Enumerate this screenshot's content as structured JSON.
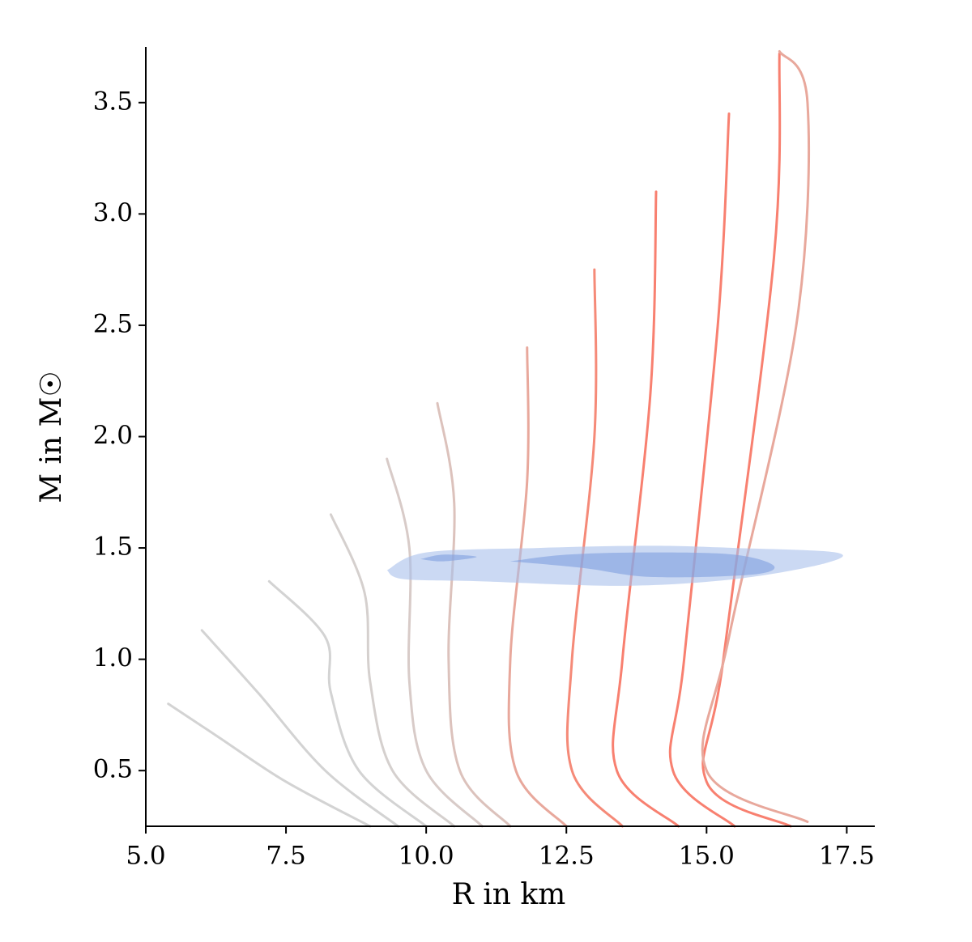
{
  "chart_data": {
    "type": "line",
    "x_label": "R in km",
    "y_label": "M in M☉",
    "xlim": [
      5,
      18
    ],
    "ylim": [
      0.25,
      3.75
    ],
    "xticks": [
      {
        "value": 5,
        "label": "5.0"
      },
      7.5,
      {
        "value": 10,
        "label": "10.0"
      },
      12.5,
      {
        "value": 15,
        "label": "15.0"
      },
      17.5
    ],
    "yticks": [
      0.5,
      {
        "value": 1,
        "label": "1.0"
      },
      1.5,
      {
        "value": 2,
        "label": "2.0"
      },
      2.5,
      {
        "value": 3,
        "label": "3.0"
      },
      3.5
    ],
    "series": [
      {
        "color": "#d3d3d3",
        "x": [
          9.0,
          7.5,
          6.3,
          5.4
        ],
        "values": [
          0.25,
          0.45,
          0.65,
          0.8
        ]
      },
      {
        "color": "#d3d3d3",
        "x": [
          9.5,
          8.2,
          7.0,
          6.0
        ],
        "values": [
          0.25,
          0.5,
          0.85,
          1.13
        ]
      },
      {
        "color": "#d3d3d3",
        "x": [
          10.0,
          8.8,
          8.3,
          8.2,
          7.2
        ],
        "values": [
          0.25,
          0.5,
          0.85,
          1.1,
          1.35
        ]
      },
      {
        "color": "#d5d0ce",
        "x": [
          10.5,
          9.4,
          9.0,
          8.9,
          8.3
        ],
        "values": [
          0.25,
          0.5,
          0.9,
          1.3,
          1.65
        ]
      },
      {
        "color": "#d8cbc8",
        "x": [
          11.0,
          10.0,
          9.7,
          9.7,
          9.3
        ],
        "values": [
          0.25,
          0.5,
          0.9,
          1.5,
          1.9
        ]
      },
      {
        "color": "#dcc2bc",
        "x": [
          11.5,
          10.6,
          10.4,
          10.5,
          10.2
        ],
        "values": [
          0.25,
          0.5,
          1.0,
          1.7,
          2.15
        ]
      },
      {
        "color": "#e8a89c",
        "x": [
          12.5,
          11.6,
          11.5,
          11.8,
          11.8
        ],
        "values": [
          0.25,
          0.5,
          1.0,
          1.8,
          2.4
        ]
      },
      {
        "color": "#f58a78",
        "x": [
          13.5,
          12.6,
          12.6,
          13.0,
          13.0
        ],
        "values": [
          0.25,
          0.5,
          1.0,
          2.0,
          2.75
        ]
      },
      {
        "color": "#f88070",
        "x": [
          14.5,
          13.4,
          13.5,
          14.0,
          14.1
        ],
        "values": [
          0.25,
          0.5,
          1.0,
          2.2,
          3.1
        ]
      },
      {
        "color": "#f88070",
        "x": [
          15.5,
          14.4,
          14.6,
          15.2,
          15.4
        ],
        "values": [
          0.25,
          0.5,
          1.0,
          2.5,
          3.45
        ]
      },
      {
        "color": "#f88070",
        "x": [
          16.5,
          15.0,
          15.3,
          16.2,
          16.3
        ],
        "values": [
          0.25,
          0.45,
          1.0,
          2.8,
          3.72
        ]
      },
      {
        "color": "#e8a89c",
        "x": [
          16.8,
          15.0,
          15.4,
          16.6,
          16.8,
          16.3
        ],
        "values": [
          0.27,
          0.5,
          1.1,
          2.5,
          3.5,
          3.73
        ]
      }
    ],
    "regions": [
      {
        "color": "#a9bfeb",
        "x": [
          9.3,
          10.0,
          12.0,
          14.0,
          15.5,
          17.3,
          17.1,
          15.5,
          13.5,
          11.0,
          9.6,
          9.3
        ],
        "values": [
          1.4,
          1.48,
          1.5,
          1.51,
          1.5,
          1.48,
          1.43,
          1.36,
          1.33,
          1.35,
          1.36,
          1.4
        ]
      },
      {
        "color": "#7f9fe0",
        "x": [
          11.5,
          12.5,
          14.0,
          15.5,
          16.2,
          15.8,
          14.0,
          12.8,
          11.5
        ],
        "values": [
          1.44,
          1.47,
          1.48,
          1.47,
          1.42,
          1.38,
          1.37,
          1.41,
          1.44
        ]
      },
      {
        "color": "#7f9fe0",
        "x": [
          9.9,
          10.3,
          10.9,
          10.3,
          9.9
        ],
        "values": [
          1.45,
          1.47,
          1.46,
          1.44,
          1.45
        ]
      }
    ]
  }
}
